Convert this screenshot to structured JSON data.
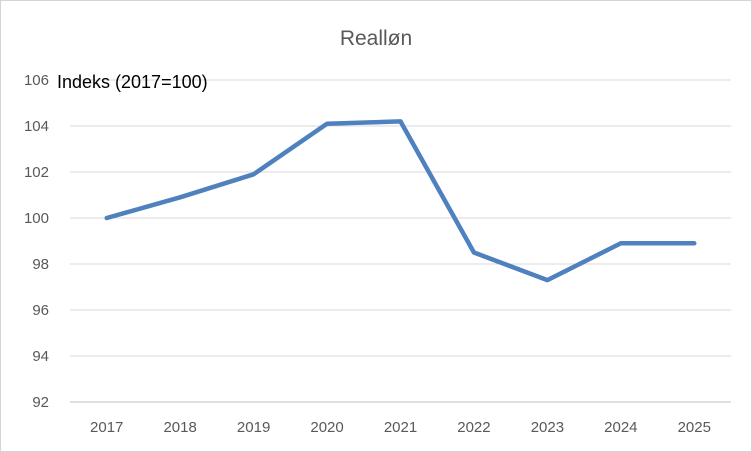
{
  "chart_data": {
    "type": "line",
    "title": "Realløn",
    "annotation": "Indeks (2017=100)",
    "categories": [
      "2017",
      "2018",
      "2019",
      "2020",
      "2021",
      "2022",
      "2023",
      "2024",
      "2025"
    ],
    "series": [
      {
        "name": "Realløn",
        "values": [
          100.0,
          100.9,
          101.9,
          104.1,
          104.2,
          98.5,
          97.3,
          98.9,
          98.9
        ]
      }
    ],
    "xlabel": "",
    "ylabel": "",
    "ylim": [
      92,
      106
    ],
    "yticks": [
      106,
      104,
      102,
      100,
      98,
      96,
      94,
      92
    ],
    "grid": true,
    "legend_position": "none"
  },
  "colors": {
    "line": "#4E81BD",
    "gridline": "#D9D9D9",
    "axis_line": "#BFBFBF",
    "tick_text": "#595959",
    "title_text": "#595959",
    "annotation_text": "#000000",
    "border": "#D4D4D4",
    "background": "#FFFFFF"
  }
}
